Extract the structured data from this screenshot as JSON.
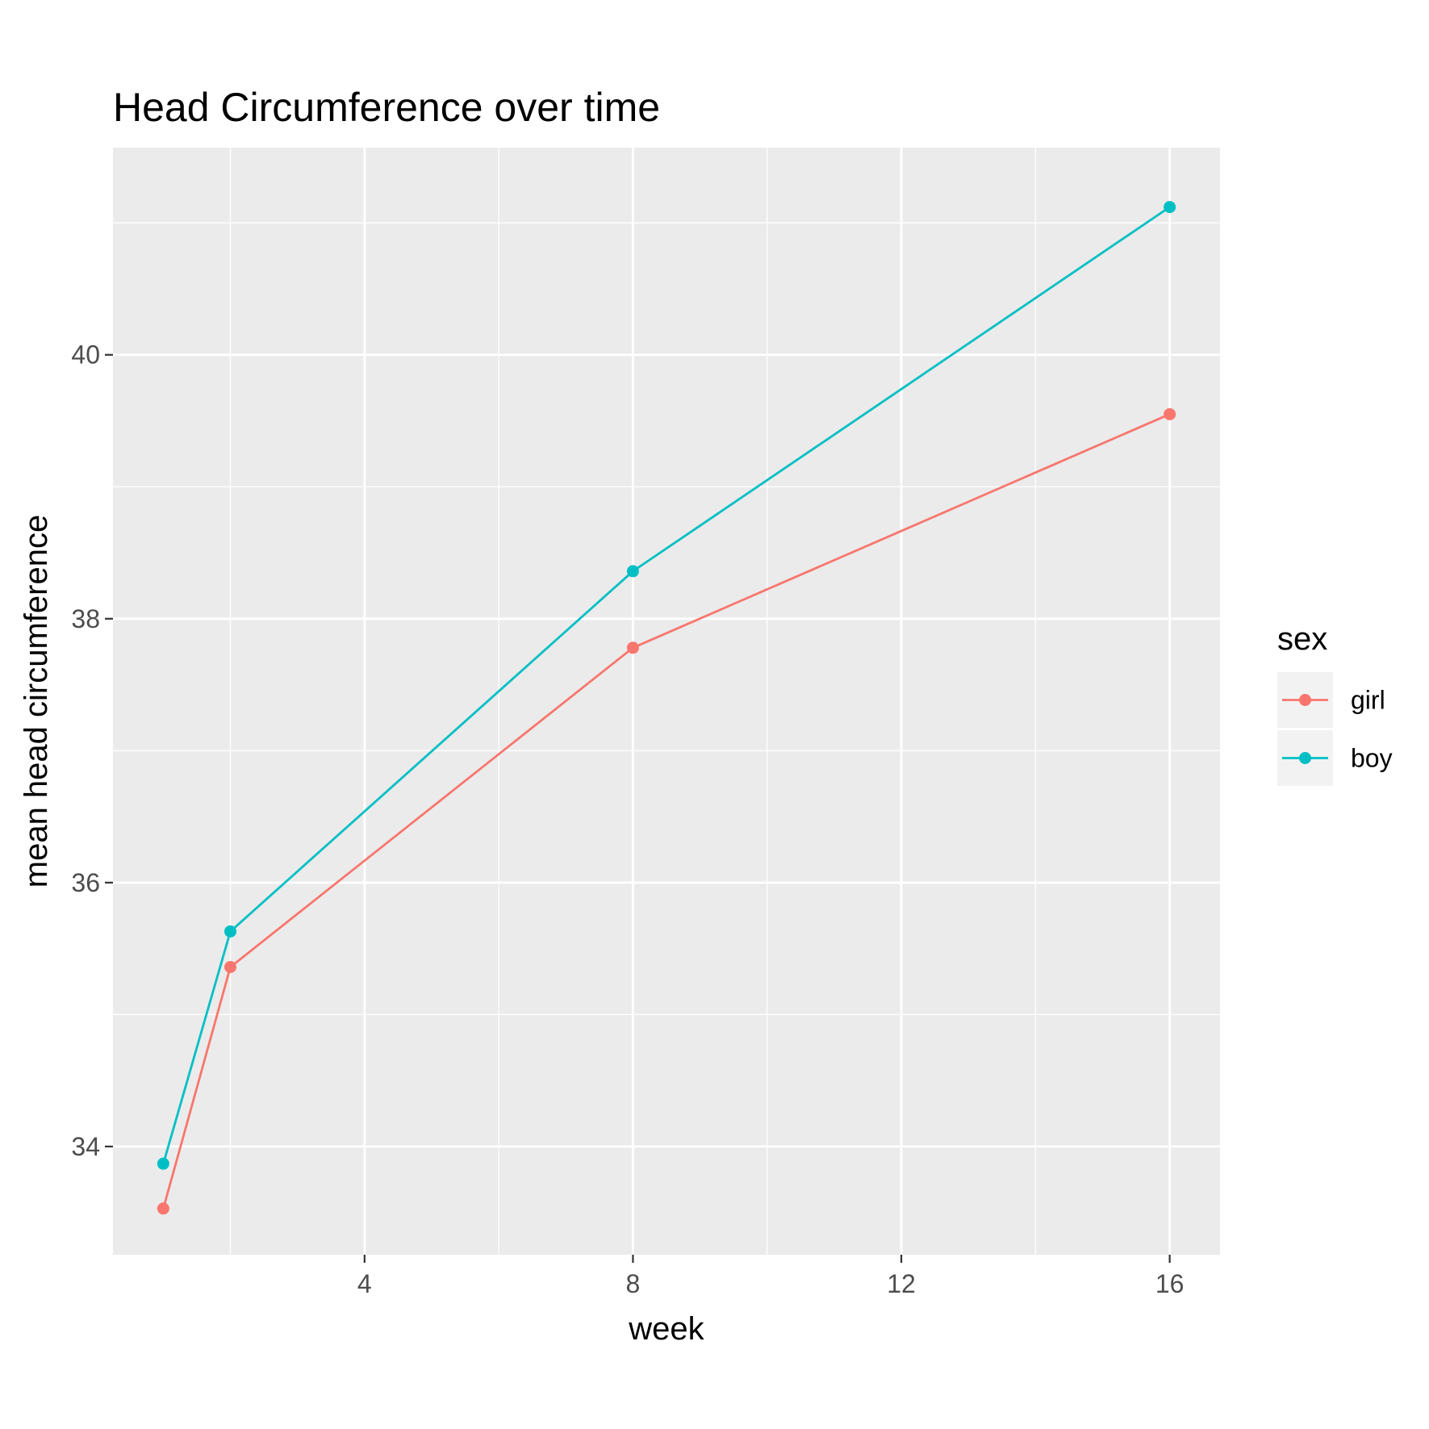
{
  "chart_data": {
    "type": "line",
    "title": "Head Circumference over time",
    "xlabel": "week",
    "ylabel": "mean head circumference",
    "x_ticks": [
      4,
      8,
      12,
      16
    ],
    "y_ticks": [
      34,
      36,
      38,
      40
    ],
    "xlim": [
      0.25,
      16.75
    ],
    "ylim": [
      33.18,
      41.57
    ],
    "grid": true,
    "legend": {
      "title": "sex",
      "position": "right"
    },
    "series": [
      {
        "name": "girl",
        "color": "#F8766D",
        "points": [
          [
            1,
            33.53
          ],
          [
            2,
            35.36
          ],
          [
            8,
            37.78
          ],
          [
            16,
            39.55
          ]
        ]
      },
      {
        "name": "boy",
        "color": "#00BFC4",
        "points": [
          [
            1,
            33.87
          ],
          [
            2,
            35.63
          ],
          [
            8,
            38.36
          ],
          [
            16,
            41.12
          ]
        ]
      }
    ]
  }
}
